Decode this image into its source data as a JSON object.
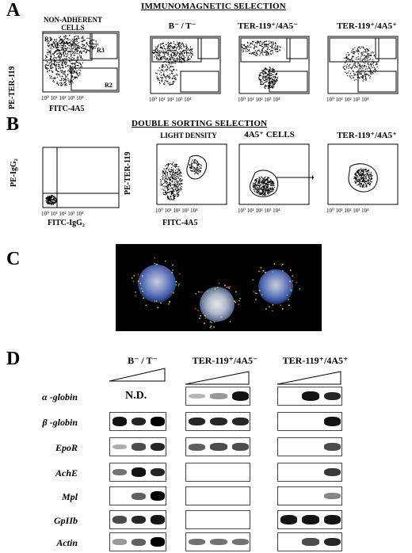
{
  "panel_a": {
    "letter": "A",
    "title": "IMMUNOMAGNETIC SELECTION",
    "plot1_label": "NON-ADHERENT CELLS",
    "plot2_label": "B⁻ / T⁻",
    "plot3_label": "TER-119⁺/4A5⁻",
    "plot4_label": "TER-119⁺/4A5⁺",
    "y_axis": "PE-TER-119",
    "x_axis": "FITC-4A5",
    "gates": [
      "R1",
      "R3",
      "R2"
    ],
    "ticks": [
      "10⁰",
      "10¹",
      "10²",
      "10³",
      "10⁴"
    ]
  },
  "panel_b": {
    "letter": "B",
    "title": "DOUBLE SORTING SELECTION",
    "plot1_y": "PE-IgG₂",
    "plot1_x": "FITC-IgG₂",
    "plot2_label": "LIGHT DENSITY",
    "plot2_y": "PE-TER-119",
    "plot2_x": "FITC-4A5",
    "plot3_label": "4A5⁺ CELLS",
    "plot4_label": "TER-119⁺/4A5⁺"
  },
  "panel_c": {
    "letter": "C"
  },
  "panel_d": {
    "letter": "D",
    "group1": "B⁻ / T⁻",
    "group2": "TER-119⁺/4A5⁻",
    "group3": "TER-119⁺/4A5⁺",
    "nd_label": "N.D.",
    "genes": [
      "α -globin",
      "β -globin",
      "EpoR",
      "AchE",
      "Mpl",
      "GpIIb",
      "Actin"
    ]
  }
}
